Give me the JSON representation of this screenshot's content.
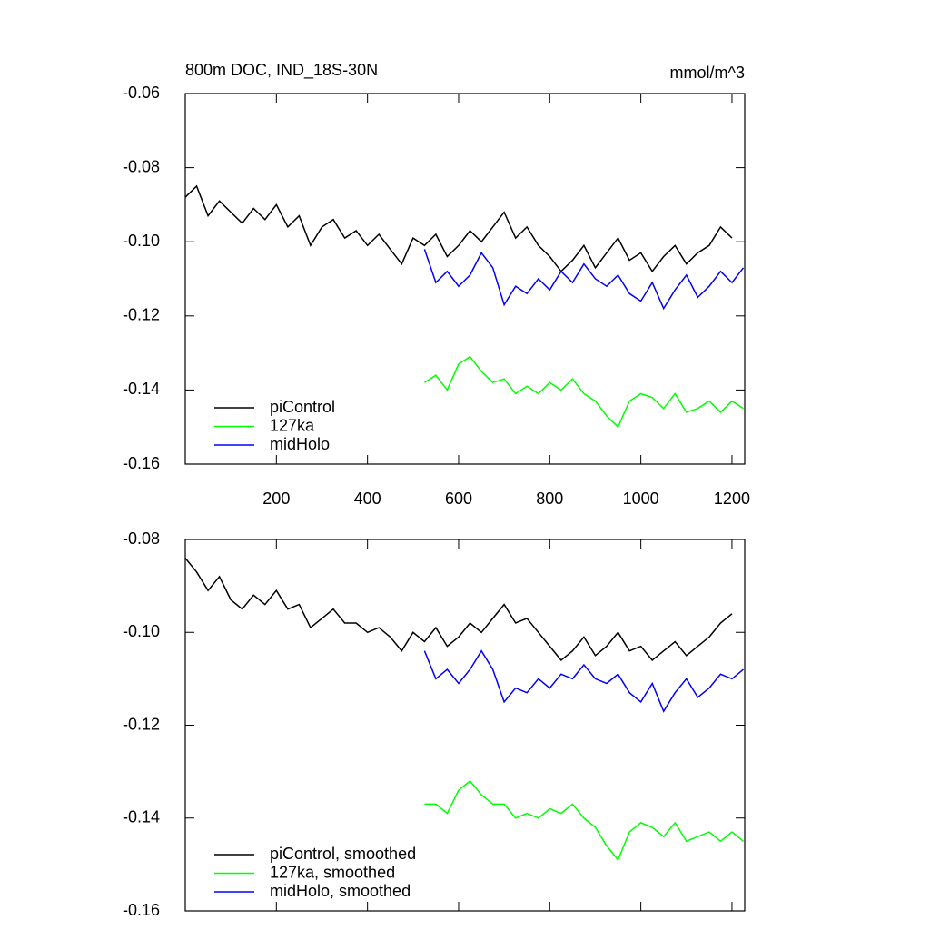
{
  "chart_data": [
    {
      "type": "line",
      "title": "800m DOC, IND_18S-30N",
      "units": "mmol/m^3",
      "xlim": [
        0,
        1228
      ],
      "ylim": [
        -0.16,
        -0.06
      ],
      "xticks": [
        200,
        400,
        600,
        800,
        1000,
        1200
      ],
      "x_tick_labels": true,
      "yticks": [
        -0.16,
        -0.14,
        -0.12,
        {
          "value": -0.1,
          "label": "-0.10"
        },
        -0.08,
        -0.06
      ],
      "series": [
        {
          "name": "piControl",
          "color": "#000000",
          "x": [
            0,
            25,
            50,
            75,
            100,
            125,
            150,
            175,
            200,
            225,
            250,
            275,
            300,
            325,
            350,
            375,
            400,
            425,
            450,
            475,
            500,
            525,
            550,
            575,
            600,
            625,
            650,
            675,
            700,
            725,
            750,
            775,
            800,
            825,
            850,
            875,
            900,
            925,
            950,
            975,
            1000,
            1025,
            1050,
            1075,
            1100,
            1125,
            1150,
            1175,
            1200
          ],
          "values": [
            -0.088,
            -0.085,
            -0.093,
            -0.089,
            -0.092,
            -0.095,
            -0.091,
            -0.094,
            -0.09,
            -0.096,
            -0.093,
            -0.101,
            -0.096,
            -0.094,
            -0.099,
            -0.097,
            -0.101,
            -0.098,
            -0.102,
            -0.106,
            -0.099,
            -0.101,
            -0.098,
            -0.104,
            -0.101,
            -0.097,
            -0.1,
            -0.096,
            -0.092,
            -0.099,
            -0.096,
            -0.101,
            -0.104,
            -0.108,
            -0.105,
            -0.101,
            -0.107,
            -0.103,
            -0.099,
            -0.105,
            -0.103,
            -0.108,
            -0.104,
            -0.101,
            -0.106,
            -0.103,
            -0.101,
            -0.096,
            -0.099
          ]
        },
        {
          "name": "127ka",
          "color": "#00ff00",
          "x": [
            525,
            550,
            575,
            600,
            625,
            650,
            675,
            700,
            725,
            750,
            775,
            800,
            825,
            850,
            875,
            900,
            925,
            950,
            975,
            1000,
            1025,
            1050,
            1075,
            1100,
            1125,
            1150,
            1175,
            1200,
            1225
          ],
          "values": [
            -0.138,
            -0.136,
            -0.14,
            -0.133,
            -0.131,
            -0.135,
            -0.138,
            -0.137,
            -0.141,
            -0.139,
            -0.141,
            -0.138,
            -0.14,
            -0.137,
            -0.141,
            -0.143,
            -0.147,
            -0.15,
            -0.143,
            -0.141,
            -0.142,
            -0.145,
            -0.141,
            -0.146,
            -0.145,
            -0.143,
            -0.146,
            -0.143,
            -0.145
          ]
        },
        {
          "name": "midHolo",
          "color": "#0000ff",
          "x": [
            525,
            550,
            575,
            600,
            625,
            650,
            675,
            700,
            725,
            750,
            775,
            800,
            825,
            850,
            875,
            900,
            925,
            950,
            975,
            1000,
            1025,
            1050,
            1075,
            1100,
            1125,
            1150,
            1175,
            1200,
            1225
          ],
          "values": [
            -0.102,
            -0.111,
            -0.108,
            -0.112,
            -0.109,
            -0.103,
            -0.107,
            -0.117,
            -0.112,
            -0.114,
            -0.11,
            -0.113,
            -0.108,
            -0.111,
            -0.106,
            -0.11,
            -0.112,
            -0.109,
            -0.114,
            -0.116,
            -0.111,
            -0.118,
            -0.113,
            -0.109,
            -0.115,
            -0.112,
            -0.108,
            -0.111,
            -0.107
          ]
        }
      ]
    },
    {
      "type": "line",
      "xlim": [
        0,
        1228
      ],
      "ylim": [
        -0.16,
        -0.08
      ],
      "xticks": [
        200,
        400,
        600,
        800,
        1000,
        1200
      ],
      "x_tick_labels": false,
      "yticks": [
        -0.16,
        -0.14,
        -0.12,
        {
          "value": -0.1,
          "label": "-0.10"
        },
        -0.08
      ],
      "series": [
        {
          "name": "piControl, smoothed",
          "color": "#000000",
          "x": [
            0,
            25,
            50,
            75,
            100,
            125,
            150,
            175,
            200,
            225,
            250,
            275,
            300,
            325,
            350,
            375,
            400,
            425,
            450,
            475,
            500,
            525,
            550,
            575,
            600,
            625,
            650,
            675,
            700,
            725,
            750,
            775,
            800,
            825,
            850,
            875,
            900,
            925,
            950,
            975,
            1000,
            1025,
            1050,
            1075,
            1100,
            1125,
            1150,
            1175,
            1200
          ],
          "values": [
            -0.084,
            -0.087,
            -0.091,
            -0.088,
            -0.093,
            -0.095,
            -0.092,
            -0.094,
            -0.091,
            -0.095,
            -0.094,
            -0.099,
            -0.097,
            -0.095,
            -0.098,
            -0.098,
            -0.1,
            -0.099,
            -0.101,
            -0.104,
            -0.1,
            -0.102,
            -0.099,
            -0.103,
            -0.101,
            -0.098,
            -0.1,
            -0.097,
            -0.094,
            -0.098,
            -0.097,
            -0.1,
            -0.103,
            -0.106,
            -0.104,
            -0.101,
            -0.105,
            -0.103,
            -0.1,
            -0.104,
            -0.103,
            -0.106,
            -0.104,
            -0.102,
            -0.105,
            -0.103,
            -0.101,
            -0.098,
            -0.096
          ]
        },
        {
          "name": "127ka, smoothed",
          "color": "#00ff00",
          "x": [
            525,
            550,
            575,
            600,
            625,
            650,
            675,
            700,
            725,
            750,
            775,
            800,
            825,
            850,
            875,
            900,
            925,
            950,
            975,
            1000,
            1025,
            1050,
            1075,
            1100,
            1125,
            1150,
            1175,
            1200,
            1225
          ],
          "values": [
            -0.137,
            -0.137,
            -0.139,
            -0.134,
            -0.132,
            -0.135,
            -0.137,
            -0.137,
            -0.14,
            -0.139,
            -0.14,
            -0.138,
            -0.139,
            -0.137,
            -0.14,
            -0.142,
            -0.146,
            -0.149,
            -0.143,
            -0.141,
            -0.142,
            -0.144,
            -0.141,
            -0.145,
            -0.144,
            -0.143,
            -0.145,
            -0.143,
            -0.145
          ]
        },
        {
          "name": "midHolo, smoothed",
          "color": "#0000ff",
          "x": [
            525,
            550,
            575,
            600,
            625,
            650,
            675,
            700,
            725,
            750,
            775,
            800,
            825,
            850,
            875,
            900,
            925,
            950,
            975,
            1000,
            1025,
            1050,
            1075,
            1100,
            1125,
            1150,
            1175,
            1200,
            1225
          ],
          "values": [
            -0.104,
            -0.11,
            -0.108,
            -0.111,
            -0.108,
            -0.104,
            -0.108,
            -0.115,
            -0.112,
            -0.113,
            -0.11,
            -0.112,
            -0.109,
            -0.11,
            -0.107,
            -0.11,
            -0.111,
            -0.109,
            -0.113,
            -0.115,
            -0.111,
            -0.117,
            -0.113,
            -0.11,
            -0.114,
            -0.112,
            -0.109,
            -0.11,
            -0.108
          ]
        }
      ]
    }
  ]
}
